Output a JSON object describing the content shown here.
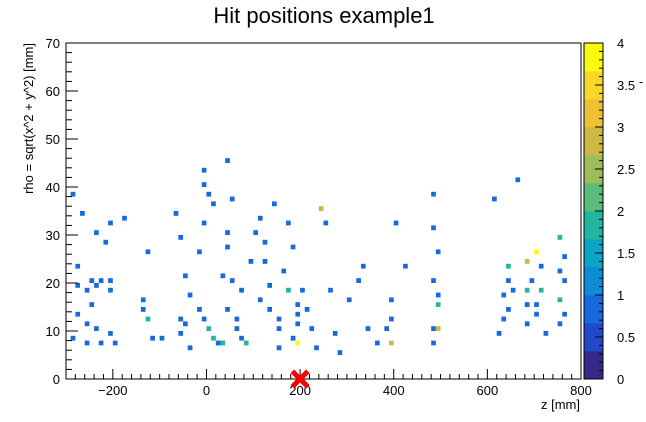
{
  "chart_data": {
    "type": "heatmap",
    "title": "Hit positions example1",
    "xlabel": "z [mm]",
    "ylabel": "rho = sqrt(x^2 + y^2) [mm]",
    "xlim": [
      -300,
      800
    ],
    "ylim": [
      0,
      70
    ],
    "x_ticks": [
      -200,
      0,
      200,
      400,
      600,
      800
    ],
    "y_ticks": [
      0,
      10,
      20,
      30,
      40,
      50,
      60,
      70
    ],
    "colorbar": {
      "range": [
        0,
        4
      ],
      "ticks": [
        "0",
        "0.5",
        "1",
        "1.5",
        "2",
        "2.5",
        "3",
        "3.5",
        "4"
      ],
      "colors": [
        "#352a87",
        "#2249c9",
        "#1769dd",
        "#0f8bd7",
        "#0aa5c5",
        "#22b59f",
        "#5bbd7c",
        "#9bbe5a",
        "#ccb944",
        "#eec034",
        "#f9d727",
        "#f9fb0e"
      ],
      "extra_label": "-"
    },
    "bin_size": {
      "z": 10,
      "rho": 1
    },
    "marker": {
      "z": 200,
      "rho": 0,
      "symbol": "x",
      "color": "#ff0000"
    },
    "bins": [
      [
        -290,
        38,
        1
      ],
      [
        -270,
        34,
        1
      ],
      [
        -280,
        23,
        1
      ],
      [
        -250,
        20,
        1
      ],
      [
        -230,
        20,
        1
      ],
      [
        -210,
        20,
        1
      ],
      [
        -280,
        19,
        1
      ],
      [
        -260,
        18,
        1
      ],
      [
        -240,
        19,
        1
      ],
      [
        -210,
        18,
        1
      ],
      [
        -250,
        15,
        1
      ],
      [
        -280,
        13,
        1
      ],
      [
        -260,
        11,
        1
      ],
      [
        -240,
        10,
        1
      ],
      [
        -210,
        9,
        1
      ],
      [
        -290,
        8,
        1
      ],
      [
        -260,
        7,
        1
      ],
      [
        -230,
        7,
        1
      ],
      [
        -200,
        7,
        1
      ],
      [
        -240,
        30,
        1
      ],
      [
        -210,
        32,
        1
      ],
      [
        -180,
        33,
        1
      ],
      [
        -220,
        28,
        1
      ],
      [
        -140,
        16,
        1
      ],
      [
        -140,
        14,
        1
      ],
      [
        -130,
        26,
        1
      ],
      [
        -130,
        12,
        2
      ],
      [
        -120,
        8,
        1
      ],
      [
        -100,
        8,
        1
      ],
      [
        -70,
        34,
        1
      ],
      [
        -60,
        29,
        1
      ],
      [
        -50,
        21,
        1
      ],
      [
        -60,
        12,
        1
      ],
      [
        -50,
        11,
        1
      ],
      [
        -60,
        9,
        1
      ],
      [
        -40,
        6,
        1
      ],
      [
        -10,
        43,
        1
      ],
      [
        -10,
        40,
        1
      ],
      [
        0,
        38,
        1
      ],
      [
        10,
        36,
        1
      ],
      [
        -10,
        32,
        1
      ],
      [
        -20,
        26,
        1
      ],
      [
        -40,
        17,
        1
      ],
      [
        -20,
        14,
        1
      ],
      [
        -10,
        12,
        1
      ],
      [
        0,
        10,
        2
      ],
      [
        10,
        8,
        2
      ],
      [
        20,
        7,
        1
      ],
      [
        30,
        7,
        2
      ],
      [
        40,
        30,
        1
      ],
      [
        40,
        45,
        1
      ],
      [
        40,
        27,
        1
      ],
      [
        50,
        37,
        1
      ],
      [
        30,
        21,
        1
      ],
      [
        50,
        20,
        1
      ],
      [
        70,
        18,
        1
      ],
      [
        40,
        14,
        1
      ],
      [
        60,
        12,
        1
      ],
      [
        60,
        10,
        1
      ],
      [
        70,
        8,
        1
      ],
      [
        80,
        7,
        2
      ],
      [
        90,
        24,
        1
      ],
      [
        100,
        30,
        1
      ],
      [
        110,
        33,
        1
      ],
      [
        120,
        28,
        1
      ],
      [
        120,
        24,
        1
      ],
      [
        130,
        19,
        1
      ],
      [
        110,
        16,
        1
      ],
      [
        130,
        14,
        1
      ],
      [
        150,
        12,
        1
      ],
      [
        150,
        10,
        1
      ],
      [
        150,
        6,
        1
      ],
      [
        140,
        36,
        1
      ],
      [
        160,
        22,
        1
      ],
      [
        170,
        32,
        1
      ],
      [
        180,
        27,
        1
      ],
      [
        170,
        18,
        2
      ],
      [
        190,
        15,
        1
      ],
      [
        190,
        13,
        1
      ],
      [
        190,
        11,
        1
      ],
      [
        180,
        8,
        1
      ],
      [
        190,
        7,
        4
      ],
      [
        200,
        18,
        1
      ],
      [
        210,
        14,
        1
      ],
      [
        220,
        10,
        1
      ],
      [
        240,
        35,
        3
      ],
      [
        250,
        32,
        1
      ],
      [
        260,
        18,
        1
      ],
      [
        270,
        9,
        1
      ],
      [
        230,
        6,
        1
      ],
      [
        280,
        5,
        1
      ],
      [
        300,
        16,
        1
      ],
      [
        320,
        20,
        1
      ],
      [
        330,
        23,
        1
      ],
      [
        340,
        10,
        1
      ],
      [
        360,
        7,
        1
      ],
      [
        400,
        32,
        1
      ],
      [
        390,
        16,
        1
      ],
      [
        390,
        12,
        1
      ],
      [
        380,
        10,
        1
      ],
      [
        390,
        7,
        3
      ],
      [
        420,
        23,
        1
      ],
      [
        480,
        38,
        1
      ],
      [
        480,
        31,
        1
      ],
      [
        490,
        26,
        1
      ],
      [
        480,
        20,
        1
      ],
      [
        490,
        17,
        1
      ],
      [
        490,
        15,
        2
      ],
      [
        480,
        10,
        1
      ],
      [
        490,
        10,
        3
      ],
      [
        480,
        7,
        1
      ],
      [
        610,
        37,
        1
      ],
      [
        640,
        23,
        2
      ],
      [
        640,
        20,
        1
      ],
      [
        630,
        17,
        1
      ],
      [
        640,
        14,
        1
      ],
      [
        630,
        12,
        1
      ],
      [
        620,
        9,
        1
      ],
      [
        650,
        18,
        1
      ],
      [
        660,
        41,
        1
      ],
      [
        680,
        24,
        3
      ],
      [
        690,
        20,
        1
      ],
      [
        680,
        18,
        2
      ],
      [
        680,
        15,
        1
      ],
      [
        680,
        11,
        1
      ],
      [
        700,
        26,
        4
      ],
      [
        710,
        23,
        1
      ],
      [
        710,
        18,
        2
      ],
      [
        700,
        15,
        1
      ],
      [
        700,
        13,
        1
      ],
      [
        720,
        9,
        1
      ],
      [
        750,
        29,
        2
      ],
      [
        760,
        25,
        1
      ],
      [
        750,
        22,
        1
      ],
      [
        760,
        20,
        1
      ],
      [
        750,
        16,
        2
      ],
      [
        760,
        13,
        1
      ],
      [
        750,
        11,
        1
      ]
    ]
  }
}
